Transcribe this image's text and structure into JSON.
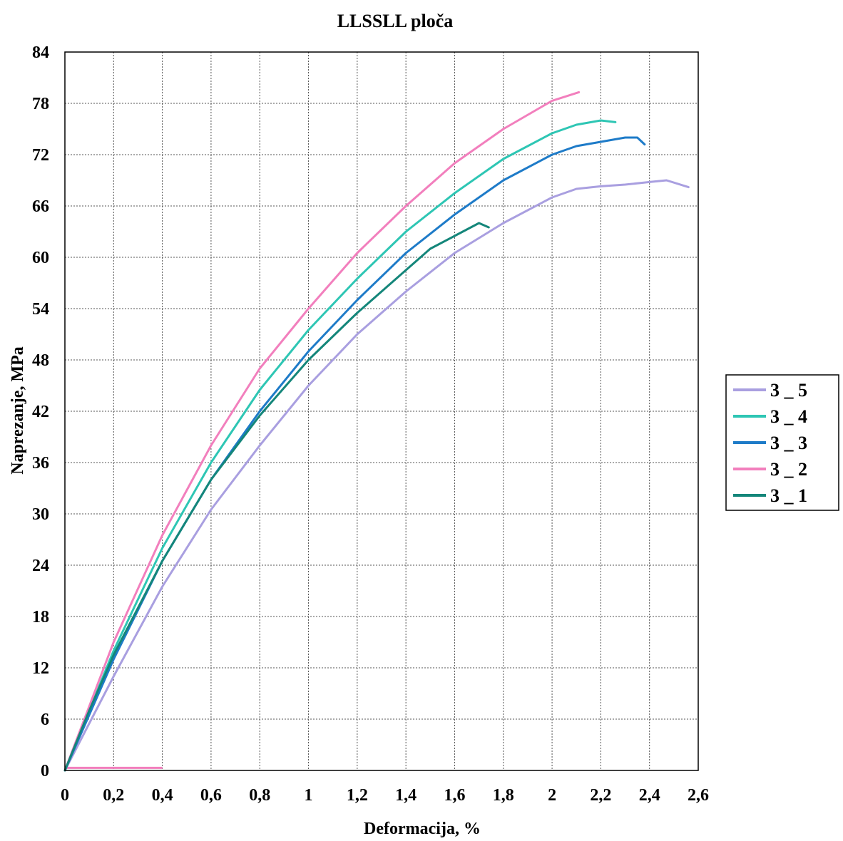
{
  "chart_data": {
    "type": "line",
    "title": "LLSSLL ploča",
    "xlabel": "Deformacija, %",
    "ylabel": "Naprezanje, MPa",
    "xlim": [
      0,
      2.6
    ],
    "ylim": [
      0,
      84
    ],
    "x_ticks": [
      "0",
      "0,2",
      "0,4",
      "0,6",
      "0,8",
      "1",
      "1,2",
      "1,4",
      "1,6",
      "1,8",
      "2",
      "2,2",
      "2,4",
      "2,6"
    ],
    "y_ticks": [
      "0",
      "6",
      "12",
      "18",
      "24",
      "30",
      "36",
      "42",
      "48",
      "54",
      "60",
      "66",
      "72",
      "78",
      "84"
    ],
    "grid": true,
    "legend_position": "right",
    "series": [
      {
        "name": "3 _ 5",
        "color": "#a99fe0",
        "x": [
          0,
          0.1,
          0.2,
          0.4,
          0.6,
          0.8,
          1.0,
          1.2,
          1.4,
          1.6,
          1.8,
          2.0,
          2.1,
          2.2,
          2.3,
          2.4,
          2.47,
          2.56
        ],
        "y": [
          0,
          5.5,
          11,
          21.5,
          30.5,
          38,
          45,
          51,
          56,
          60.5,
          64,
          67,
          68,
          68.3,
          68.5,
          68.8,
          69,
          68.2
        ]
      },
      {
        "name": "3 _ 4",
        "color": "#2ec6b4",
        "x": [
          0,
          0.1,
          0.2,
          0.4,
          0.6,
          0.8,
          1.0,
          1.2,
          1.4,
          1.6,
          1.8,
          2.0,
          2.1,
          2.2,
          2.26
        ],
        "y": [
          0,
          7,
          14,
          26,
          36,
          44.5,
          51.5,
          57.5,
          63,
          67.5,
          71.5,
          74.5,
          75.5,
          76,
          75.8
        ]
      },
      {
        "name": "3 _ 3",
        "color": "#1e7bc8",
        "x": [
          0,
          0.1,
          0.2,
          0.4,
          0.6,
          0.8,
          1.0,
          1.2,
          1.4,
          1.6,
          1.8,
          2.0,
          2.1,
          2.2,
          2.3,
          2.35,
          2.38
        ],
        "y": [
          0,
          6.5,
          13,
          24.5,
          34,
          42,
          49,
          55,
          60.5,
          65,
          69,
          72,
          73,
          73.5,
          74,
          74,
          73.2
        ]
      },
      {
        "name": "3 _ 2",
        "color": "#f27fbd",
        "x": [
          0,
          0.1,
          0.2,
          0.4,
          0.6,
          0.8,
          1.0,
          1.2,
          1.4,
          1.6,
          1.8,
          2.0,
          2.11
        ],
        "y": [
          0,
          7.5,
          15,
          27.5,
          38,
          47,
          54,
          60.5,
          66,
          71,
          75,
          78.3,
          79.3
        ]
      },
      {
        "name": "3 _ 1",
        "color": "#14867a",
        "x": [
          0,
          0.1,
          0.2,
          0.4,
          0.6,
          0.8,
          1.0,
          1.2,
          1.4,
          1.5,
          1.6,
          1.7,
          1.74
        ],
        "y": [
          0,
          7,
          13.5,
          24.5,
          34,
          41.5,
          48,
          53.5,
          58.5,
          61,
          62.5,
          64,
          63.5
        ]
      }
    ],
    "baseline_segment": {
      "color": "#f27fbd",
      "x": [
        0,
        0.4
      ],
      "y": [
        0.3,
        0.3
      ]
    }
  }
}
